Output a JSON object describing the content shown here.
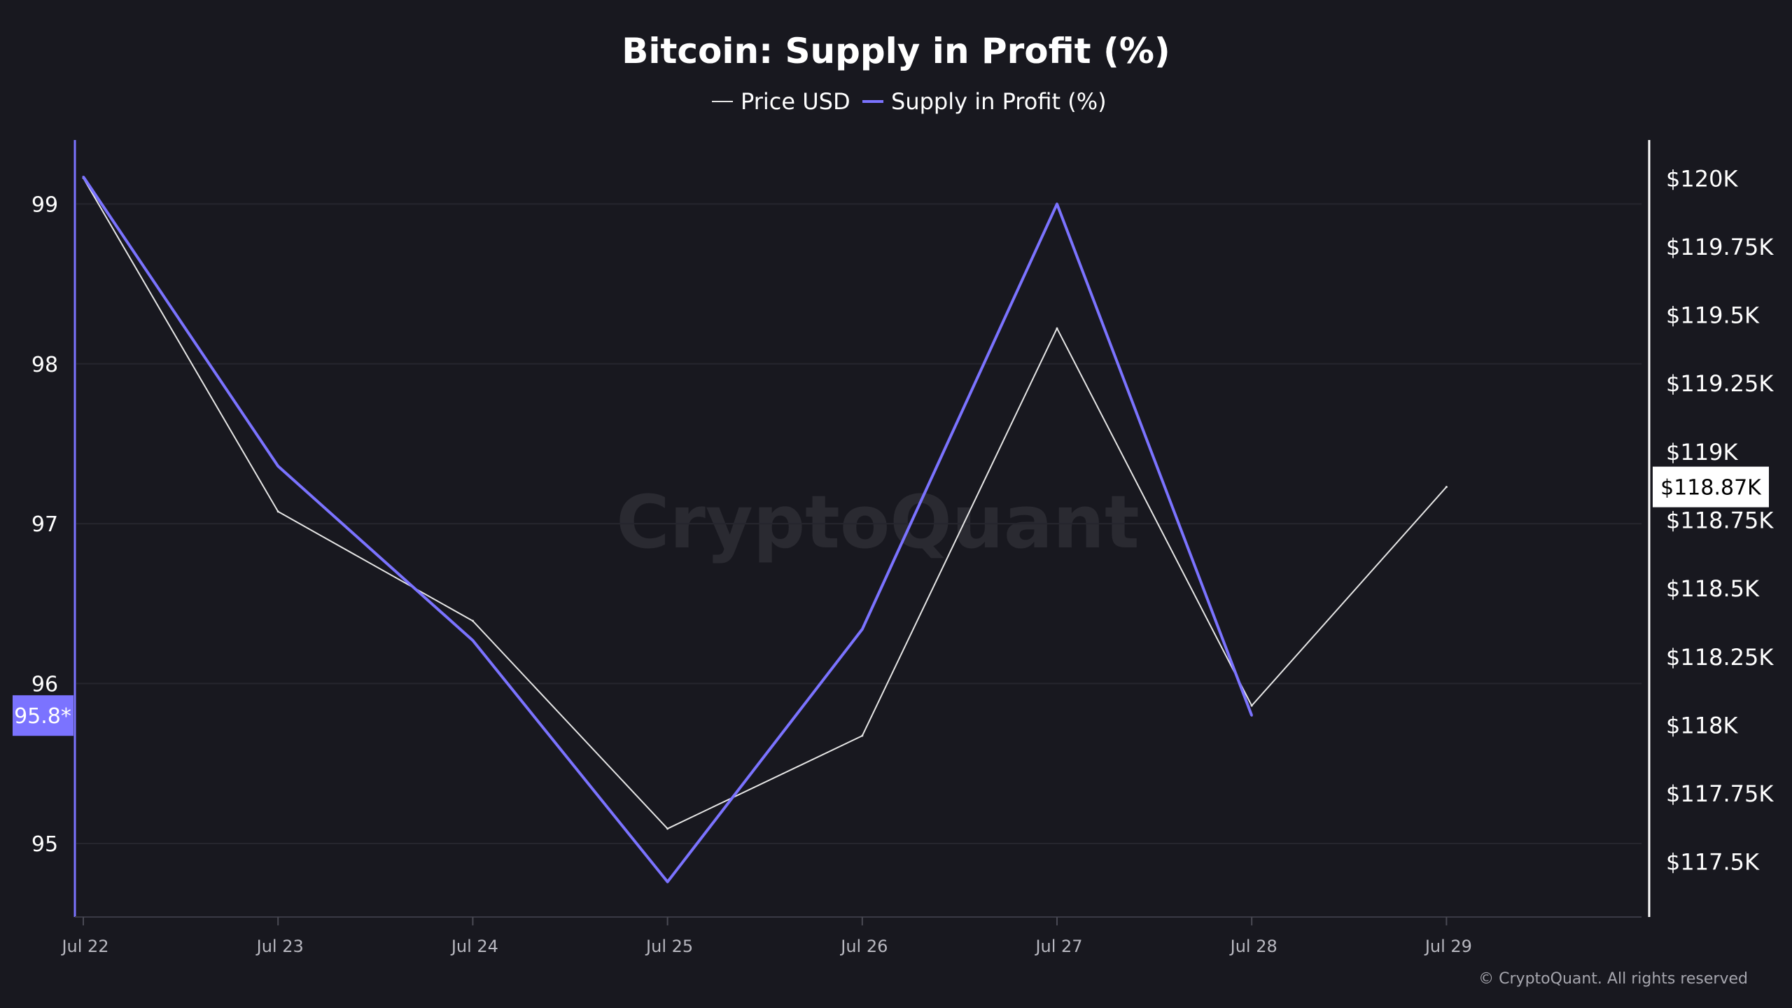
{
  "chart_data": {
    "type": "line",
    "title": "Bitcoin: Supply in Profit (%)",
    "categories": [
      "Jul 22",
      "Jul 23",
      "Jul 24",
      "Jul 25",
      "Jul 26",
      "Jul 27",
      "Jul 28",
      "Jul 29"
    ],
    "series": [
      {
        "name": "Price USD",
        "axis": "right",
        "color": "#e6e6e6",
        "values": [
          120000,
          118780,
          118380,
          117620,
          117960,
          119450,
          118070,
          118870
        ]
      },
      {
        "name": "Supply in Profit (%)",
        "axis": "left",
        "color": "#7b73ff",
        "values": [
          99.17,
          97.36,
          96.27,
          94.76,
          96.34,
          99.0,
          95.8,
          null
        ]
      }
    ],
    "left_axis": {
      "ticks": [
        95,
        96,
        97,
        98,
        99
      ],
      "tick_labels": [
        "95",
        "96",
        "97",
        "98",
        "99"
      ],
      "range": [
        94.54,
        99.4
      ],
      "current_badge": "95.8*",
      "current_value": 95.8
    },
    "right_axis": {
      "ticks": [
        117500,
        117750,
        118000,
        118250,
        118500,
        118750,
        119000,
        119250,
        119500,
        119750,
        120000
      ],
      "tick_labels": [
        "$117.5K",
        "$117.75K",
        "$118K",
        "$118.25K",
        "$118.5K",
        "$118.75K",
        "$119K",
        "$119.25K",
        "$119.5K",
        "$119.75K",
        "$120K"
      ],
      "range": [
        117297,
        120139
      ],
      "current_badge": "$118.87K",
      "current_value": 118870
    },
    "grid": true,
    "legend_position": "top-center"
  },
  "watermark": "CryptoQuant",
  "copyright": "© CryptoQuant. All rights reserved",
  "colors": {
    "background": "#18181f",
    "supply_line": "#7b73ff",
    "price_line": "#e6e6e6",
    "gridline": "#26262e",
    "badge_left_bg": "#7b73ff",
    "badge_right_bg": "#ffffff"
  }
}
